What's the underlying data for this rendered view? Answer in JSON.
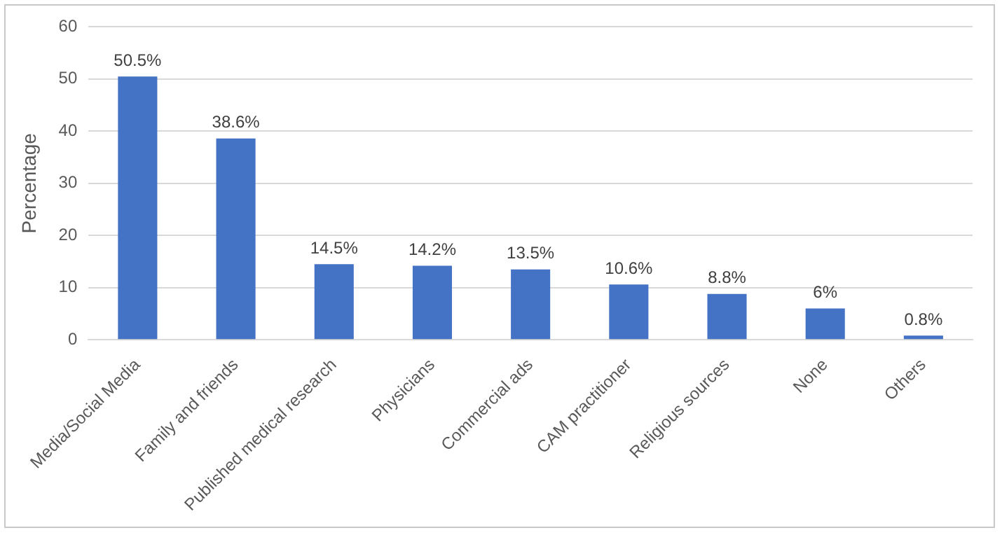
{
  "chart_data": {
    "type": "bar",
    "ylabel": "Percentage",
    "categories": [
      "Media/Social Media",
      "Family and friends",
      "Published medical research",
      "Physicians",
      "Commercial ads",
      "CAM practitioner",
      "Religious sources",
      "None",
      "Others"
    ],
    "values": [
      50.5,
      38.6,
      14.5,
      14.2,
      13.5,
      10.6,
      8.8,
      6,
      0.8
    ],
    "value_labels": [
      "50.5%",
      "38.6%",
      "14.5%",
      "14.2%",
      "13.5%",
      "10.6%",
      "8.8%",
      "6%",
      "0.8%"
    ],
    "color": "#4472c4",
    "ylim": [
      0,
      60
    ],
    "yticks": [
      0,
      10,
      20,
      30,
      40,
      50,
      60
    ],
    "grid": "y",
    "legend": false
  }
}
